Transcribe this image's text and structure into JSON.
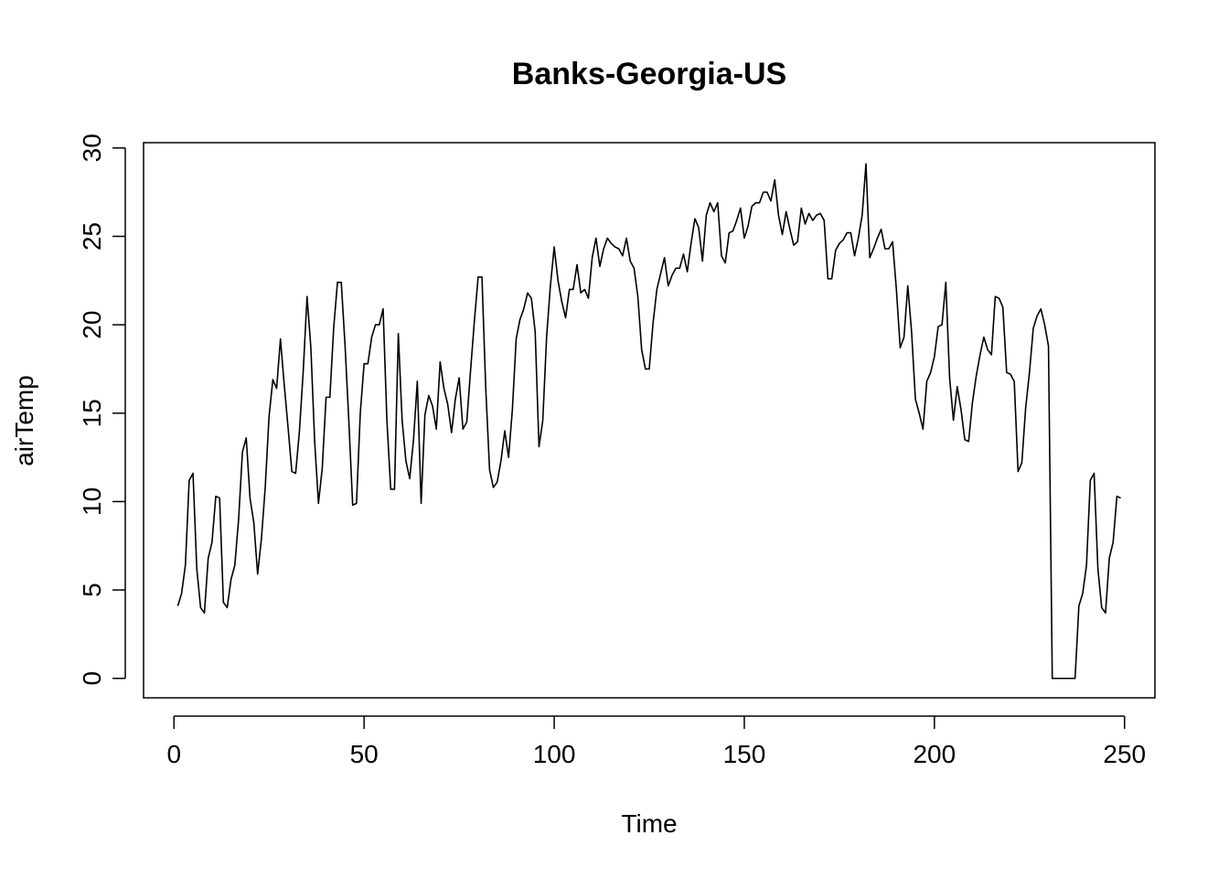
{
  "chart_data": {
    "type": "line",
    "title": "Banks-Georgia-US",
    "xlabel": "Time",
    "ylabel": "airTemp",
    "xlim": [
      -8,
      258
    ],
    "ylim": [
      -1.1,
      30.3
    ],
    "x_ticks": [
      0,
      50,
      100,
      150,
      200,
      250
    ],
    "y_ticks": [
      0,
      5,
      10,
      15,
      20,
      25,
      30
    ],
    "grid": false,
    "line_color": "#000000",
    "series": [
      {
        "x_start": 1,
        "x_step": 1,
        "values": [
          4.1,
          4.8,
          6.4,
          11.2,
          11.6,
          6.2,
          4.0,
          3.7,
          6.8,
          7.7,
          10.3,
          10.2,
          4.3,
          4.0,
          5.6,
          6.4,
          9.0,
          12.8,
          13.6,
          10.2,
          8.8,
          5.9,
          7.9,
          10.8,
          14.8,
          16.9,
          16.4,
          19.2,
          16.6,
          14.2,
          11.7,
          11.6,
          14.0,
          17.4,
          21.6,
          18.7,
          13.4,
          9.9,
          11.9,
          15.9,
          15.9,
          19.8,
          22.4,
          22.4,
          18.8,
          14.5,
          9.8,
          9.9,
          15.0,
          17.8,
          17.8,
          19.3,
          20.0,
          20.0,
          20.9,
          14.6,
          10.7,
          10.7,
          19.5,
          14.6,
          12.3,
          11.3,
          13.5,
          16.8,
          9.9,
          14.9,
          16.0,
          15.4,
          14.1,
          17.9,
          16.4,
          15.5,
          13.9,
          15.8,
          17.0,
          14.1,
          14.5,
          17.4,
          20.2,
          22.7,
          22.7,
          16.4,
          11.8,
          10.8,
          11.1,
          12.3,
          14.0,
          12.5,
          15.2,
          19.2,
          20.3,
          20.9,
          21.8,
          21.5,
          19.6,
          13.1,
          14.6,
          19.3,
          22.2,
          24.4,
          22.5,
          21.3,
          20.4,
          22.0,
          22.0,
          23.4,
          21.8,
          22.0,
          21.5,
          23.8,
          24.9,
          23.3,
          24.3,
          24.9,
          24.6,
          24.4,
          24.3,
          23.9,
          24.9,
          23.6,
          23.2,
          21.6,
          18.6,
          17.5,
          17.5,
          20.1,
          22.0,
          22.9,
          23.8,
          22.2,
          22.8,
          23.2,
          23.2,
          24.0,
          23.0,
          24.6,
          26.0,
          25.5,
          23.6,
          26.2,
          26.9,
          26.4,
          26.9,
          23.9,
          23.5,
          25.2,
          25.3,
          25.9,
          26.6,
          24.9,
          25.6,
          26.7,
          26.9,
          26.9,
          27.5,
          27.5,
          27.0,
          28.2,
          26.2,
          25.1,
          26.4,
          25.4,
          24.5,
          24.7,
          26.6,
          25.7,
          26.3,
          25.9,
          26.2,
          26.3,
          25.9,
          22.6,
          22.6,
          24.2,
          24.6,
          24.8,
          25.2,
          25.2,
          23.9,
          24.9,
          26.2,
          29.1,
          23.8,
          24.3,
          24.9,
          25.4,
          24.3,
          24.3,
          24.7,
          22.0,
          18.7,
          19.3,
          22.2,
          19.6,
          15.8,
          15.0,
          14.1,
          16.8,
          17.3,
          18.2,
          19.9,
          20.0,
          22.4,
          17.0,
          14.6,
          16.5,
          15.2,
          13.5,
          13.4,
          15.6,
          17.1,
          18.3,
          19.3,
          18.6,
          18.3,
          21.6,
          21.5,
          21.0,
          17.3,
          17.2,
          16.8,
          11.7,
          12.2,
          15.3,
          17.3,
          19.8,
          20.5,
          20.9,
          20.0,
          18.8,
          0.0,
          0.0,
          0.0,
          0.0,
          0.0,
          0.0,
          0.0,
          4.1,
          4.8,
          6.4,
          11.2,
          11.6,
          6.2,
          4.0,
          3.7,
          6.8,
          7.7,
          10.3,
          10.2
        ]
      }
    ]
  }
}
